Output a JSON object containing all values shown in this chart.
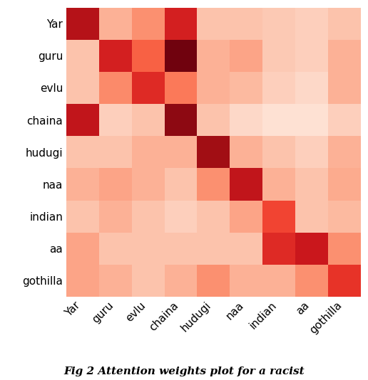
{
  "labels": [
    "Yar",
    "guru",
    "evlu",
    "chaina",
    "hudugi",
    "naa",
    "indian",
    "aa",
    "gothilla"
  ],
  "matrix": [
    [
      0.82,
      0.28,
      0.38,
      0.72,
      0.22,
      0.22,
      0.2,
      0.18,
      0.22
    ],
    [
      0.22,
      0.72,
      0.52,
      0.98,
      0.28,
      0.32,
      0.2,
      0.18,
      0.28
    ],
    [
      0.22,
      0.4,
      0.68,
      0.45,
      0.28,
      0.25,
      0.18,
      0.15,
      0.28
    ],
    [
      0.78,
      0.18,
      0.22,
      0.92,
      0.22,
      0.15,
      0.12,
      0.12,
      0.18
    ],
    [
      0.22,
      0.22,
      0.28,
      0.28,
      0.88,
      0.28,
      0.22,
      0.18,
      0.28
    ],
    [
      0.28,
      0.32,
      0.28,
      0.22,
      0.38,
      0.78,
      0.28,
      0.22,
      0.3
    ],
    [
      0.22,
      0.28,
      0.22,
      0.18,
      0.22,
      0.32,
      0.6,
      0.22,
      0.25
    ],
    [
      0.32,
      0.22,
      0.22,
      0.22,
      0.22,
      0.22,
      0.68,
      0.75,
      0.38
    ],
    [
      0.32,
      0.28,
      0.22,
      0.28,
      0.38,
      0.28,
      0.28,
      0.38,
      0.65
    ]
  ],
  "cmap": "Reds",
  "figsize": [
    5.16,
    5.34
  ],
  "dpi": 100,
  "xlabel_rotation": 45,
  "tick_fontsize": 11,
  "caption": "Fig 2 Attention weights plot for a racist",
  "vmin": 0.0,
  "vmax": 1.0
}
